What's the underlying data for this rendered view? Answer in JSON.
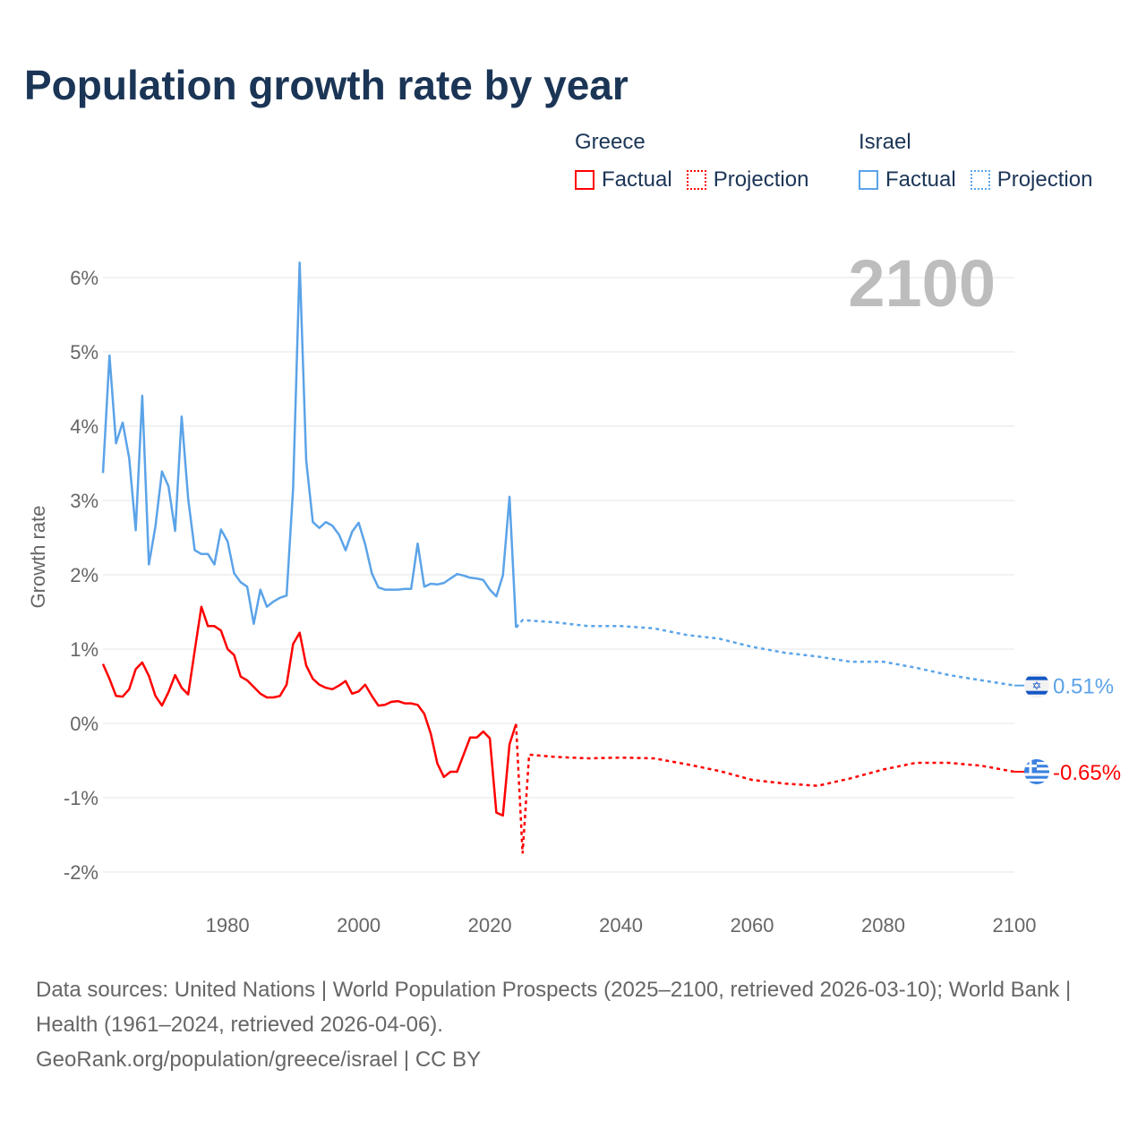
{
  "chart_data": {
    "type": "line",
    "title": "Population growth rate by year",
    "xlabel": "",
    "ylabel": "Growth rate",
    "xlim": [
      1961,
      2100
    ],
    "ylim": [
      -2,
      6
    ],
    "x_ticks": [
      1980,
      2000,
      2020,
      2040,
      2060,
      2080,
      2100
    ],
    "x_tick_labels": [
      "1980",
      "2000",
      "2020",
      "2040",
      "2060",
      "2080",
      "2100"
    ],
    "y_ticks": [
      -2,
      -1,
      0,
      1,
      2,
      3,
      4,
      5,
      6
    ],
    "y_tick_labels": [
      "-2%",
      "-1%",
      "0%",
      "1%",
      "2%",
      "3%",
      "4%",
      "5%",
      "6%"
    ],
    "grid": true,
    "year_watermark": "2100",
    "legend": {
      "placement": "top-right",
      "groups": [
        {
          "name": "Greece",
          "factual": "Factual",
          "projection": "Projection",
          "color": "#ff0000"
        },
        {
          "name": "Israel",
          "factual": "Factual",
          "projection": "Projection",
          "color": "#5ba3e8"
        }
      ]
    },
    "series": [
      {
        "name": "Israel",
        "color": "#5ba3e8",
        "end_label": "0.51%",
        "flag": "israel-flag",
        "factual": {
          "x": [
            1961,
            1962,
            1963,
            1964,
            1965,
            1966,
            1967,
            1968,
            1969,
            1970,
            1971,
            1972,
            1973,
            1974,
            1975,
            1976,
            1977,
            1978,
            1979,
            1980,
            1981,
            1982,
            1983,
            1984,
            1985,
            1986,
            1987,
            1988,
            1989,
            1990,
            1991,
            1992,
            1993,
            1994,
            1995,
            1996,
            1997,
            1998,
            1999,
            2000,
            2001,
            2002,
            2003,
            2004,
            2005,
            2006,
            2007,
            2008,
            2009,
            2010,
            2011,
            2012,
            2013,
            2014,
            2015,
            2016,
            2017,
            2018,
            2019,
            2020,
            2021,
            2022,
            2023,
            2024
          ],
          "y": [
            3.37,
            4.95,
            3.77,
            4.05,
            3.57,
            2.6,
            4.41,
            2.14,
            2.65,
            3.39,
            3.19,
            2.59,
            4.13,
            3.02,
            2.33,
            2.28,
            2.28,
            2.14,
            2.61,
            2.45,
            2.02,
            1.9,
            1.84,
            1.34,
            1.8,
            1.57,
            1.64,
            1.69,
            1.72,
            3.17,
            6.2,
            3.54,
            2.71,
            2.63,
            2.71,
            2.66,
            2.54,
            2.33,
            2.58,
            2.7,
            2.41,
            2.02,
            1.83,
            1.8,
            1.8,
            1.8,
            1.81,
            1.81,
            2.42,
            1.84,
            1.88,
            1.87,
            1.89,
            1.95,
            2.01,
            1.99,
            1.96,
            1.95,
            1.93,
            1.8,
            1.71,
            1.99,
            3.05,
            1.29
          ]
        },
        "projection": {
          "x": [
            2024,
            2025,
            2030,
            2035,
            2040,
            2045,
            2050,
            2055,
            2060,
            2065,
            2070,
            2075,
            2080,
            2085,
            2090,
            2095,
            2100
          ],
          "y": [
            1.29,
            1.39,
            1.36,
            1.31,
            1.31,
            1.28,
            1.19,
            1.14,
            1.03,
            0.95,
            0.9,
            0.83,
            0.83,
            0.75,
            0.65,
            0.58,
            0.51
          ]
        }
      },
      {
        "name": "Greece",
        "color": "#ff0000",
        "end_label": "-0.65%",
        "flag": "greece-flag",
        "factual": {
          "x": [
            1961,
            1962,
            1963,
            1964,
            1965,
            1966,
            1967,
            1968,
            1969,
            1970,
            1971,
            1972,
            1973,
            1974,
            1975,
            1976,
            1977,
            1978,
            1979,
            1980,
            1981,
            1982,
            1983,
            1984,
            1985,
            1986,
            1987,
            1988,
            1989,
            1990,
            1991,
            1992,
            1993,
            1994,
            1995,
            1996,
            1997,
            1998,
            1999,
            2000,
            2001,
            2002,
            2003,
            2004,
            2005,
            2006,
            2007,
            2008,
            2009,
            2010,
            2011,
            2012,
            2013,
            2014,
            2015,
            2016,
            2017,
            2018,
            2019,
            2020,
            2021,
            2022,
            2023,
            2024
          ],
          "y": [
            0.8,
            0.6,
            0.37,
            0.36,
            0.46,
            0.73,
            0.82,
            0.64,
            0.37,
            0.24,
            0.42,
            0.65,
            0.48,
            0.39,
            0.98,
            1.57,
            1.31,
            1.31,
            1.25,
            1.0,
            0.92,
            0.63,
            0.58,
            0.49,
            0.4,
            0.35,
            0.35,
            0.37,
            0.52,
            1.07,
            1.22,
            0.78,
            0.6,
            0.52,
            0.48,
            0.46,
            0.51,
            0.57,
            0.4,
            0.43,
            0.52,
            0.37,
            0.24,
            0.25,
            0.29,
            0.3,
            0.27,
            0.27,
            0.25,
            0.13,
            -0.14,
            -0.54,
            -0.72,
            -0.65,
            -0.65,
            -0.42,
            -0.19,
            -0.19,
            -0.11,
            -0.2,
            -1.2,
            -1.24,
            -0.28,
            -0.01
          ]
        },
        "projection": {
          "x": [
            2024,
            2025,
            2026,
            2030,
            2035,
            2040,
            2045,
            2050,
            2055,
            2060,
            2065,
            2070,
            2075,
            2080,
            2085,
            2090,
            2095,
            2100
          ],
          "y": [
            -0.01,
            -1.75,
            -0.42,
            -0.45,
            -0.47,
            -0.46,
            -0.47,
            -0.55,
            -0.64,
            -0.76,
            -0.81,
            -0.84,
            -0.74,
            -0.62,
            -0.53,
            -0.53,
            -0.57,
            -0.65
          ]
        }
      }
    ]
  },
  "footer": {
    "sources": "Data sources: United Nations | World Population Prospects (2025–2100, retrieved 2026-03-10); World Bank | Health (1961–2024, retrieved 2026-04-06).",
    "credit": "GeoRank.org/population/greece/israel | CC BY"
  }
}
